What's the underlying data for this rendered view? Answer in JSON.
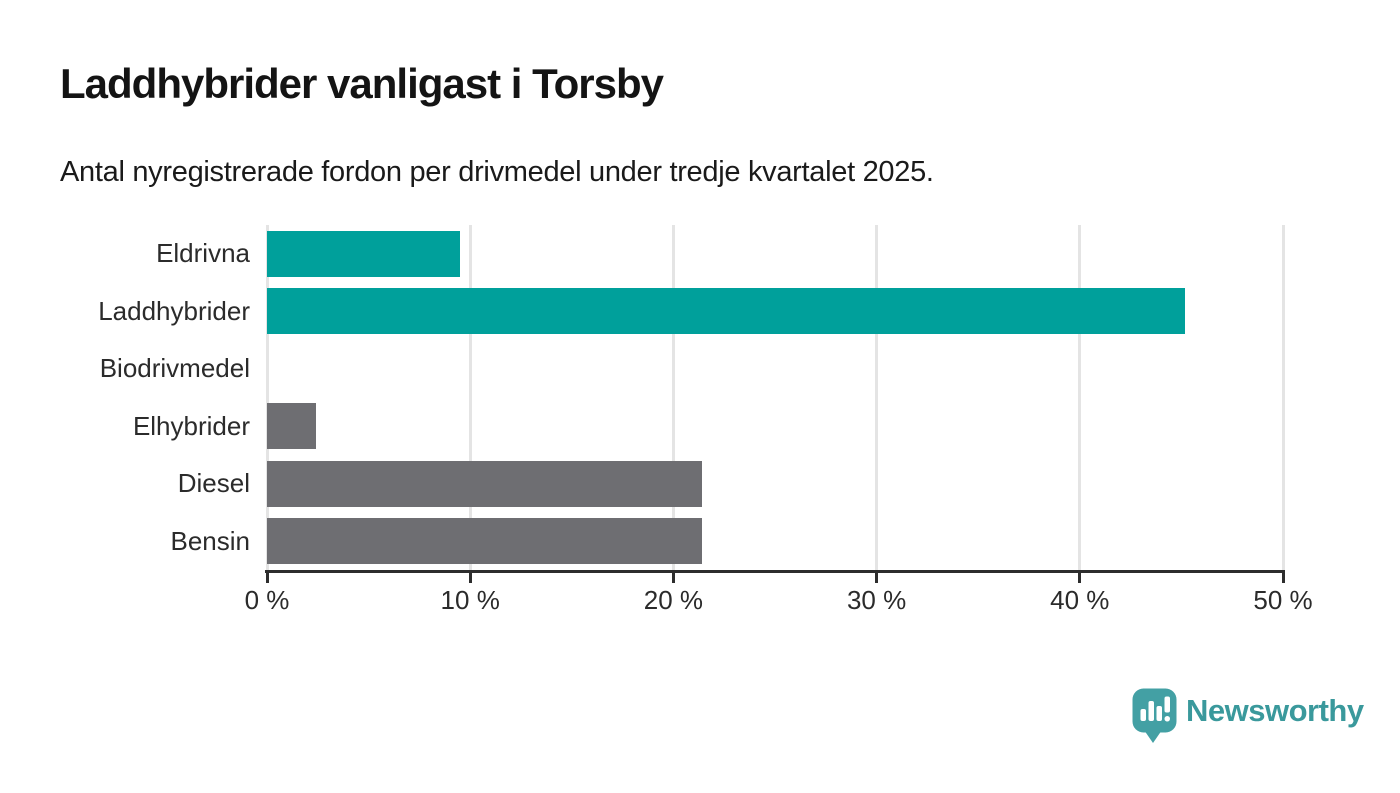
{
  "header": {
    "title": "Laddhybrider vanligast i Torsby",
    "subtitle": "Antal nyregistrerade fordon per drivmedel under tredje kvartalet 2025."
  },
  "chart_data": {
    "type": "bar",
    "orientation": "horizontal",
    "title": "Laddhybrider vanligast i Torsby",
    "subtitle": "Antal nyregistrerade fordon per drivmedel under tredje kvartalet 2025.",
    "categories": [
      "Eldrivna",
      "Laddhybrider",
      "Biodrivmedel",
      "Elhybrider",
      "Diesel",
      "Bensin"
    ],
    "values": [
      9.5,
      45.2,
      0,
      2.4,
      21.4,
      21.4
    ],
    "unit": "%",
    "bar_colors": [
      "#00a09b",
      "#00a09b",
      "#6e6e72",
      "#6e6e72",
      "#6e6e72",
      "#6e6e72"
    ],
    "highlight_color": "#00a09b",
    "default_color": "#6e6e72",
    "xlim": [
      0,
      50
    ],
    "x_ticks": [
      0,
      10,
      20,
      30,
      40,
      50
    ],
    "x_tick_labels": [
      "0 %",
      "10 %",
      "20 %",
      "30 %",
      "40 %",
      "50 %"
    ],
    "grid": "vertical-only",
    "gridline_color": "#e4e4e4",
    "axis_color": "#2d2d2d",
    "legend": "none"
  },
  "footer": {
    "logo_text": "Newsworthy",
    "logo_color": "#3a999c",
    "logo_icon": "speech-bubble-bar-chart-icon",
    "logo_icon_color": "#43a0a4"
  }
}
